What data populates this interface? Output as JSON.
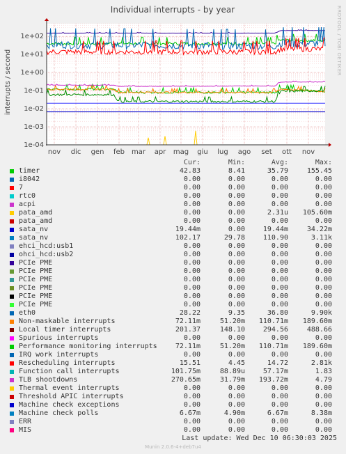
{
  "chart_data": {
    "type": "line",
    "title": "Individual interrupts - by year",
    "ylabel": "interrupts / second",
    "side_text": "RRDTOOL / TOBI OETIKER",
    "y_scale": "log",
    "ylim": [
      0.0001,
      500
    ],
    "y_ticks": [
      "1e+02",
      "1e+01",
      "1e+00",
      "1e-01",
      "1e-02",
      "1e-03",
      "1e-04"
    ],
    "x_ticks": [
      "nov",
      "dic",
      "gen",
      "feb",
      "mar",
      "apr",
      "mag",
      "giu",
      "lug",
      "ago",
      "set",
      "ott",
      "nov"
    ],
    "grid": true,
    "series": [
      {
        "name": "timer",
        "color": "#00cc00",
        "approx": [
          [
            0,
            40
          ],
          [
            0.82,
            40
          ],
          [
            0.83,
            60
          ],
          [
            1,
            60
          ]
        ]
      },
      {
        "name": "Local timer interrupts",
        "color": "#330099",
        "approx": [
          [
            0,
            150
          ],
          [
            0.82,
            150
          ],
          [
            0.84,
            210
          ],
          [
            1,
            210
          ]
        ]
      },
      {
        "name": "eth0",
        "color": "#0066b3",
        "approx": [
          [
            0,
            35
          ],
          [
            0.82,
            30
          ],
          [
            0.84,
            40
          ],
          [
            1,
            40
          ]
        ]
      },
      {
        "name": "Rescheduling interrupts",
        "color": "#ff0000",
        "approx": [
          [
            0,
            14
          ],
          [
            0.82,
            14
          ],
          [
            0.84,
            20
          ],
          [
            1,
            20
          ]
        ]
      },
      {
        "name": "Performance monitoring interrupts",
        "color": "#00cc00",
        "approx": [
          [
            0,
            0.12
          ],
          [
            0.24,
            0.12
          ],
          [
            0.26,
            0.08
          ],
          [
            0.82,
            0.08
          ],
          [
            0.84,
            0.12
          ],
          [
            1,
            0.09
          ]
        ]
      },
      {
        "name": "Non-maskable interrupts",
        "color": "#ff8000",
        "approx": [
          [
            0,
            0.12
          ],
          [
            0.24,
            0.12
          ],
          [
            0.26,
            0.08
          ],
          [
            0.82,
            0.08
          ],
          [
            0.84,
            0.12
          ],
          [
            1,
            0.09
          ]
        ]
      },
      {
        "name": "Function call interrupts",
        "color": "#008f00",
        "approx": [
          [
            0,
            0.06
          ],
          [
            0.24,
            0.06
          ],
          [
            0.26,
            0.025
          ],
          [
            0.82,
            0.025
          ],
          [
            0.84,
            0.09
          ],
          [
            1,
            0.1
          ]
        ]
      },
      {
        "name": "TLB shootdowns",
        "color": "#cc33cc",
        "approx": [
          [
            0,
            0.2
          ],
          [
            0.24,
            0.2
          ],
          [
            0.26,
            0.17
          ],
          [
            0.82,
            0.18
          ],
          [
            0.84,
            0.3
          ],
          [
            1,
            0.3
          ]
        ]
      },
      {
        "name": "sata_nv",
        "color": "#3333ff",
        "approx": [
          [
            0,
            0.02
          ],
          [
            1,
            0.02
          ]
        ]
      },
      {
        "name": "Machine check polls",
        "color": "#0000cc",
        "approx": [
          [
            0,
            0.0067
          ],
          [
            1,
            0.0067
          ]
        ]
      },
      {
        "name": "pata_amd",
        "color": "#ffcc00",
        "approx": [
          [
            0.36,
            0.0001
          ],
          [
            0.365,
            0.00025
          ],
          [
            0.37,
            0.0001
          ],
          [
            0.42,
            0.0001
          ],
          [
            0.425,
            0.0003
          ],
          [
            0.43,
            0.0001
          ],
          [
            0.53,
            0.0001
          ],
          [
            0.535,
            0.0006
          ],
          [
            0.54,
            0.0001
          ]
        ]
      }
    ]
  },
  "legend": {
    "headers": [
      "Cur:",
      "Min:",
      "Avg:",
      "Max:"
    ],
    "rows": [
      {
        "name": "timer",
        "color": "#00cc00",
        "cur": "42.83",
        "min": "8.41",
        "avg": "35.79",
        "max": "155.45"
      },
      {
        "name": "i8042",
        "color": "#0066b3",
        "cur": "0.00",
        "min": "0.00",
        "avg": "0.00",
        "max": "0.00"
      },
      {
        "name": "7",
        "color": "#ff0000",
        "cur": "0.00",
        "min": "0.00",
        "avg": "0.00",
        "max": "0.00"
      },
      {
        "name": "rtc0",
        "color": "#00cccc",
        "cur": "0.00",
        "min": "0.00",
        "avg": "0.00",
        "max": "0.00"
      },
      {
        "name": "acpi",
        "color": "#cc33cc",
        "cur": "0.00",
        "min": "0.00",
        "avg": "0.00",
        "max": "0.00"
      },
      {
        "name": "pata_amd",
        "color": "#ffcc00",
        "cur": "0.00",
        "min": "0.00",
        "avg": "2.31u",
        "max": "105.60m"
      },
      {
        "name": "pata_amd",
        "color": "#cc0000",
        "cur": "0.00",
        "min": "0.00",
        "avg": "0.00",
        "max": "0.00"
      },
      {
        "name": "sata_nv",
        "color": "#0000cc",
        "cur": "19.44m",
        "min": "0.00",
        "avg": "19.44m",
        "max": "34.22m"
      },
      {
        "name": "sata_nv",
        "color": "#0080c0",
        "cur": "102.17",
        "min": "29.78",
        "avg": "110.90",
        "max": "3.11k"
      },
      {
        "name": "ehci_hcd:usb1",
        "color": "#8080c0",
        "cur": "0.00",
        "min": "0.00",
        "avg": "0.00",
        "max": "0.00"
      },
      {
        "name": "ohci_hcd:usb2",
        "color": "#0000a0",
        "cur": "0.00",
        "min": "0.00",
        "avg": "0.00",
        "max": "0.00"
      },
      {
        "name": "PCIe PME",
        "color": "#330099",
        "cur": "0.00",
        "min": "0.00",
        "avg": "0.00",
        "max": "0.00"
      },
      {
        "name": "PCIe PME",
        "color": "#669933",
        "cur": "0.00",
        "min": "0.00",
        "avg": "0.00",
        "max": "0.00"
      },
      {
        "name": "PCIe PME",
        "color": "#339999",
        "cur": "0.00",
        "min": "0.00",
        "avg": "0.00",
        "max": "0.00"
      },
      {
        "name": "PCIe PME",
        "color": "#6b8e23",
        "cur": "0.00",
        "min": "0.00",
        "avg": "0.00",
        "max": "0.00"
      },
      {
        "name": "PCIe PME",
        "color": "#000000",
        "cur": "0.00",
        "min": "0.00",
        "avg": "0.00",
        "max": "0.00"
      },
      {
        "name": "PCIe PME",
        "color": "#33ff33",
        "cur": "0.00",
        "min": "0.00",
        "avg": "0.00",
        "max": "0.00"
      },
      {
        "name": "eth0",
        "color": "#0066b3",
        "cur": "28.22",
        "min": "9.35",
        "avg": "36.80",
        "max": "9.90k"
      },
      {
        "name": "Non-maskable interrupts",
        "color": "#ff8000",
        "cur": "72.11m",
        "min": "51.20m",
        "avg": "110.71m",
        "max": "189.60m"
      },
      {
        "name": "Local timer interrupts",
        "color": "#800000",
        "cur": "201.37",
        "min": "148.10",
        "avg": "294.56",
        "max": "488.66"
      },
      {
        "name": "Spurious interrupts",
        "color": "#ff00ff",
        "cur": "0.00",
        "min": "0.00",
        "avg": "0.00",
        "max": "0.00"
      },
      {
        "name": "Performance monitoring interrupts",
        "color": "#00cc00",
        "cur": "72.11m",
        "min": "51.20m",
        "avg": "110.71m",
        "max": "189.60m"
      },
      {
        "name": "IRQ work interrupts",
        "color": "#0066b3",
        "cur": "0.00",
        "min": "0.00",
        "avg": "0.00",
        "max": "0.00"
      },
      {
        "name": "Rescheduling interrupts",
        "color": "#ff0000",
        "cur": "15.51",
        "min": "4.45",
        "avg": "14.72",
        "max": "2.81k"
      },
      {
        "name": "Function call interrupts",
        "color": "#00b3b3",
        "cur": "101.75m",
        "min": "88.89u",
        "avg": "57.17m",
        "max": "1.83"
      },
      {
        "name": "TLB shootdowns",
        "color": "#cc33cc",
        "cur": "270.65m",
        "min": "31.79m",
        "avg": "193.72m",
        "max": "4.79"
      },
      {
        "name": "Thermal event interrupts",
        "color": "#ffcc00",
        "cur": "0.00",
        "min": "0.00",
        "avg": "0.00",
        "max": "0.00"
      },
      {
        "name": "Threshold APIC interrupts",
        "color": "#cc0000",
        "cur": "0.00",
        "min": "0.00",
        "avg": "0.00",
        "max": "0.00"
      },
      {
        "name": "Machine check exceptions",
        "color": "#0000cc",
        "cur": "0.00",
        "min": "0.00",
        "avg": "0.00",
        "max": "0.00"
      },
      {
        "name": "Machine check polls",
        "color": "#0080c0",
        "cur": "6.67m",
        "min": "4.90m",
        "avg": "6.67m",
        "max": "8.38m"
      },
      {
        "name": "ERR",
        "color": "#8080c0",
        "cur": "0.00",
        "min": "0.00",
        "avg": "0.00",
        "max": "0.00"
      },
      {
        "name": "MIS",
        "color": "#ff0080",
        "cur": "0.00",
        "min": "0.00",
        "avg": "0.00",
        "max": "0.00"
      }
    ]
  },
  "footer": {
    "last_update": "Last update:  Wed Dec 10 06:30:03 2025",
    "version": "Munin 2.0.6-4+deb7u4"
  }
}
